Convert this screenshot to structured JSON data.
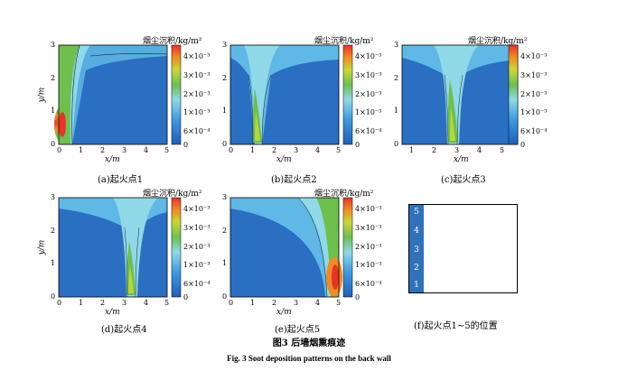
{
  "panel_common": {
    "xlabel": "x/m",
    "ylabel": "y/m",
    "colorbar_title": "烟尘沉积/kg/m²",
    "colorbar_ticks": [
      "4×10⁻³",
      "3×10⁻³",
      "2×10⁻³",
      "1×10⁻³",
      "6×10⁻⁴",
      "0"
    ],
    "colors": {
      "background_blue": "#2a74c6",
      "low_blue": "#3d8fd6",
      "light_blue": "#5fb8e6",
      "cyan": "#8fd9e8",
      "green": "#6dbf4e",
      "yellow_green": "#b8d63a",
      "orange": "#f08a24",
      "red": "#e8322a"
    }
  },
  "panels": [
    {
      "caption": "(a)起火点1",
      "yticks": [
        "0",
        "1",
        "2",
        "3"
      ],
      "xticks": [
        "0",
        "1",
        "2",
        "3",
        "4",
        "5"
      ]
    },
    {
      "caption": "(b)起火点2",
      "yticks": [
        "0",
        "1",
        "2",
        "3"
      ],
      "xticks": [
        "0",
        "1",
        "2",
        "3",
        "4",
        "5"
      ]
    },
    {
      "caption": "(c)起火点3",
      "yticks": [
        "0",
        "1",
        "2",
        "3"
      ],
      "xticks": [
        "1",
        "2",
        "3",
        "4",
        "5"
      ]
    },
    {
      "caption": "(d)起火点4",
      "yticks": [
        "0",
        "1",
        "2",
        "3"
      ],
      "xticks": [
        "0",
        "1",
        "2",
        "3",
        "4",
        "5"
      ]
    },
    {
      "caption": "(e)起火点5",
      "yticks": [
        "0",
        "1",
        "2",
        "3"
      ],
      "xticks": [
        "0",
        "1",
        "2",
        "3",
        "4",
        "5"
      ]
    }
  ],
  "fire_positions": {
    "caption": "(f)起火点1~5的位置",
    "labels": [
      "5",
      "4",
      "3",
      "2",
      "1"
    ]
  },
  "figure_caption_cn": "图3   后墙烟熏痕迹",
  "figure_caption_en": "Fig. 3   Soot deposition patterns on the back wall"
}
